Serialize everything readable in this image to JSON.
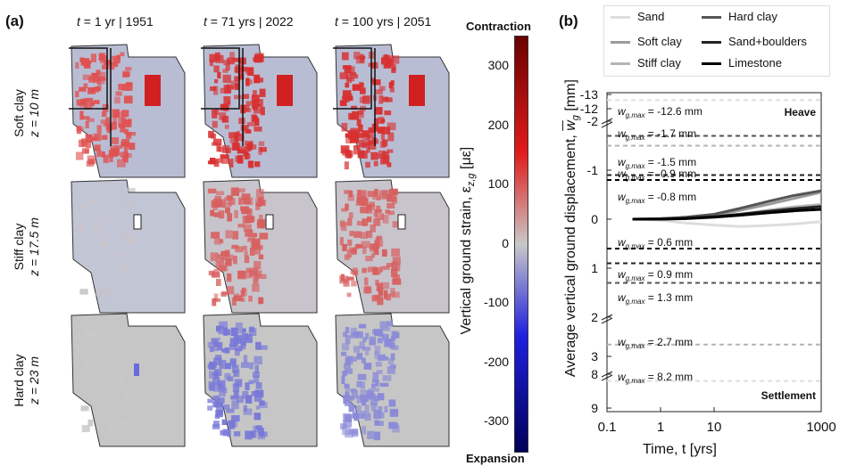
{
  "panel_a": {
    "label": "(a)",
    "columns": [
      {
        "t_label": "t",
        "t_value": " = 1 yr | 1951"
      },
      {
        "t_label": "t",
        "t_value": " = 71 yrs | 2022"
      },
      {
        "t_label": "t",
        "t_value": " = 100 yrs | 2051"
      }
    ],
    "rows": [
      {
        "soil": "Soft clay",
        "depth": "z = 10 m"
      },
      {
        "soil": "Stiff clay",
        "depth": "z = 17.5 m"
      },
      {
        "soil": "Hard clay",
        "depth": "z = 23 m"
      }
    ]
  },
  "colorbar": {
    "top_label": "Contraction",
    "bottom_label": "Expansion",
    "axis_label": "Vertical ground strain, ε",
    "axis_sub": "z,g",
    "axis_unit": " [με]",
    "ticks": [
      "300",
      "200",
      "100",
      "0",
      "-100",
      "-200",
      "-300"
    ],
    "colors": {
      "max": "#6b0000",
      "high": "#e21b1b",
      "mid": "#c8c8c8",
      "low": "#2020e0",
      "min": "#00005a"
    }
  },
  "panel_b": {
    "label": "(b)",
    "legend": [
      {
        "name": "Sand",
        "color": "#dddddd"
      },
      {
        "name": "Hard clay",
        "color": "#555555"
      },
      {
        "name": "Soft clay",
        "color": "#9a9a9a"
      },
      {
        "name": "Sand+boulders",
        "color": "#222222"
      },
      {
        "name": "Stiff clay",
        "color": "#b5b5b5"
      },
      {
        "name": "Limestone",
        "color": "#000000"
      }
    ],
    "heave_label": "Heave",
    "settlement_label": "Settlement",
    "ylabel_main": "Average vertical ground displacement, ",
    "ylabel_sym": "w",
    "ylabel_sub": "g",
    "ylabel_unit": " [mm]",
    "xlabel": "Time, t [yrs]",
    "xticks": [
      "0.1",
      "1",
      "10",
      "1000"
    ],
    "yticks": [
      "-13",
      "-12",
      "-2",
      "-1",
      "0",
      "1",
      "2",
      "3",
      "8",
      "9"
    ],
    "wmax_prefix": "w",
    "wmax_sub": "g,max",
    "wmax_annotations": [
      {
        "value": "-12.6 mm",
        "color": "#dddddd"
      },
      {
        "value": "-1.7 mm",
        "color": "#555555"
      },
      {
        "value": "-1.5 mm",
        "color": "#b5b5b5"
      },
      {
        "value": "-0.9 mm",
        "color": "#222222"
      },
      {
        "value": "-0.8 mm",
        "color": "#000000"
      },
      {
        "value": "0.6 mm",
        "color": "#000000"
      },
      {
        "value": "0.9 mm",
        "color": "#222222"
      },
      {
        "value": "1.3 mm",
        "color": "#555555"
      },
      {
        "value": "2.7 mm",
        "color": "#b5b5b5"
      },
      {
        "value": "8.2 mm",
        "color": "#dddddd"
      }
    ]
  },
  "chart_data": {
    "type": "line",
    "title": "",
    "xlabel": "Time, t [yrs]",
    "ylabel": "Average vertical ground displacement, w_g [mm]",
    "xscale": "log",
    "xlim": [
      0.1,
      1000
    ],
    "ylim": [
      -13,
      9
    ],
    "grid": false,
    "legend_position": "top",
    "series": [
      {
        "name": "Sand",
        "x": [
          0.3,
          1,
          3,
          10,
          30,
          100,
          300,
          1000
        ],
        "values": [
          0,
          0.02,
          0.08,
          0.12,
          0.15,
          0.13,
          0.1,
          0.05
        ]
      },
      {
        "name": "Soft clay",
        "x": [
          0.3,
          1,
          3,
          10,
          30,
          100,
          300,
          1000
        ],
        "values": [
          0,
          -0.01,
          -0.03,
          -0.08,
          -0.18,
          -0.3,
          -0.42,
          -0.55
        ]
      },
      {
        "name": "Stiff clay",
        "x": [
          0.3,
          1,
          3,
          10,
          30,
          100,
          300,
          1000
        ],
        "values": [
          0,
          -0.01,
          -0.02,
          -0.05,
          -0.1,
          -0.18,
          -0.25,
          -0.3
        ]
      },
      {
        "name": "Hard clay",
        "x": [
          0.3,
          1,
          3,
          10,
          30,
          100,
          300,
          1000
        ],
        "values": [
          0,
          -0.01,
          -0.04,
          -0.1,
          -0.22,
          -0.36,
          -0.48,
          -0.58
        ]
      },
      {
        "name": "Sand+boulders",
        "x": [
          0.3,
          1,
          3,
          10,
          30,
          100,
          300,
          1000
        ],
        "values": [
          0,
          0,
          -0.02,
          -0.05,
          -0.1,
          -0.16,
          -0.21,
          -0.26
        ]
      },
      {
        "name": "Limestone",
        "x": [
          0.3,
          1,
          3,
          10,
          30,
          100,
          300,
          1000
        ],
        "values": [
          0,
          0,
          -0.01,
          -0.04,
          -0.08,
          -0.13,
          -0.17,
          -0.2
        ]
      }
    ],
    "reference_lines": [
      {
        "name": "Sand w_g,max",
        "value": -12.6
      },
      {
        "name": "Hard clay w_g,max",
        "value": -1.7
      },
      {
        "name": "Stiff clay w_g,max",
        "value": -1.5
      },
      {
        "name": "Sand+boulders w_g,max",
        "value": -0.9
      },
      {
        "name": "Limestone w_g,max",
        "value": -0.8
      },
      {
        "name": "Limestone w_g,max",
        "value": 0.6
      },
      {
        "name": "Sand+boulders w_g,max",
        "value": 0.9
      },
      {
        "name": "Hard clay w_g,max",
        "value": 1.3
      },
      {
        "name": "Stiff clay w_g,max",
        "value": 2.7
      },
      {
        "name": "Sand w_g,max",
        "value": 8.2
      }
    ],
    "colorbar": {
      "label": "Vertical ground strain, ε_z,g [με]",
      "range": [
        -350,
        350
      ]
    }
  }
}
